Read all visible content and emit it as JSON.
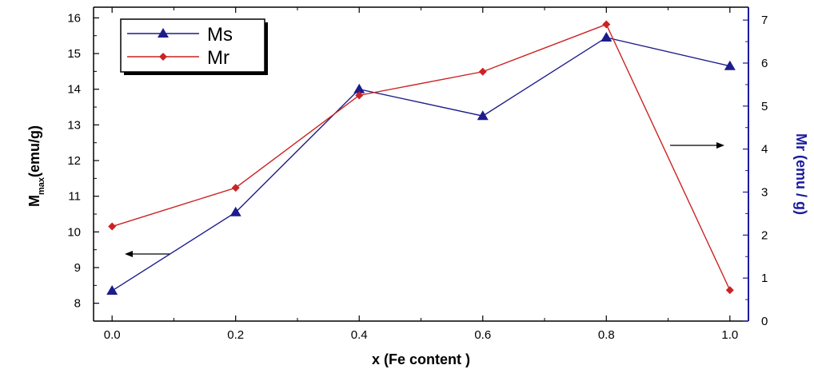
{
  "chart_data": {
    "type": "line",
    "x": [
      0.0,
      0.2,
      0.4,
      0.6,
      0.8,
      1.0
    ],
    "x_tick_labels": [
      "0.0",
      "0.2",
      "0.4",
      "0.6",
      "0.8",
      "1.0"
    ],
    "xlim": [
      -0.03,
      1.03
    ],
    "xlabel": "x (Fe content )",
    "ylabel_left": {
      "main": "M",
      "sub": "max",
      "unit": "(emu/g)"
    },
    "ylabel_right": "Mr (emu / g)",
    "ylim_left": [
      7.5,
      16.3
    ],
    "ylim_right": [
      0,
      7.3
    ],
    "y_left_ticks": [
      8,
      9,
      10,
      11,
      12,
      13,
      14,
      15,
      16
    ],
    "y_right_ticks": [
      0,
      1,
      2,
      3,
      4,
      5,
      6,
      7
    ],
    "series": [
      {
        "name": "Ms",
        "axis": "left",
        "color": "#1c1c8c",
        "marker": "triangle",
        "values": [
          8.35,
          10.55,
          14.0,
          13.25,
          15.45,
          14.65
        ]
      },
      {
        "name": "Mr",
        "axis": "right",
        "color": "#cc2222",
        "marker": "diamond",
        "values": [
          2.2,
          3.1,
          5.25,
          5.8,
          6.9,
          0.72
        ]
      }
    ],
    "legend_position": "top-left",
    "right_axis_color": "#1a1aa0",
    "grid": false
  }
}
